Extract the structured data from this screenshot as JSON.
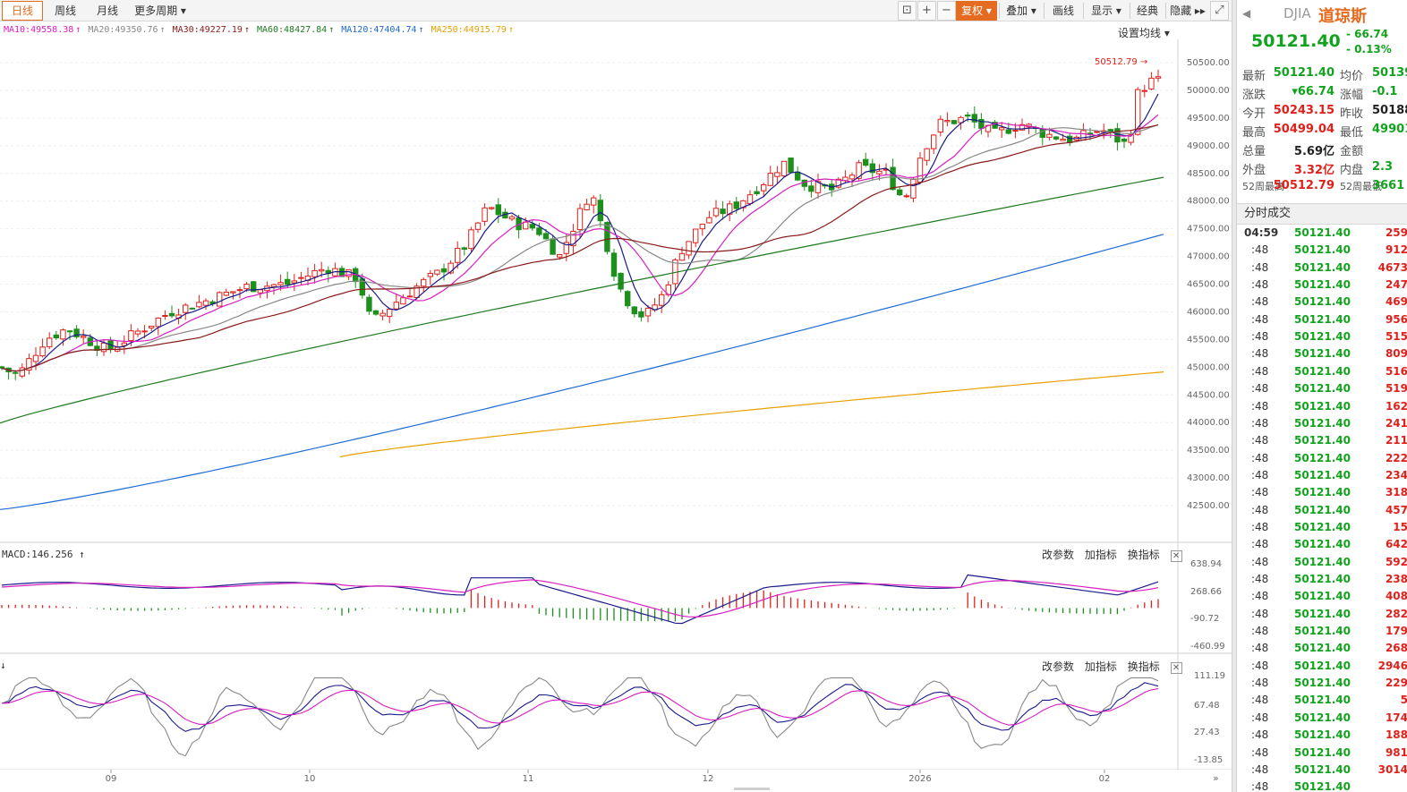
{
  "toolbar": {
    "tabs": [
      {
        "label": "日线",
        "active": true
      },
      {
        "label": "周线",
        "active": false
      },
      {
        "label": "月线",
        "active": false
      },
      {
        "label": "更多周期 ▾",
        "active": false
      }
    ],
    "right_buttons": {
      "adjust": "复权 ▾",
      "overlay": "叠加 ▾",
      "draw": "画线",
      "display": "显示 ▾",
      "classic": "经典",
      "hide": "隐藏 ▸▸"
    },
    "icons": [
      "lock-icon",
      "zoom-in-icon",
      "zoom-out-icon",
      "fullscreen-icon"
    ]
  },
  "ma_legend": [
    {
      "label": "MA10:49558.38",
      "arrow": "↑",
      "color": "#d81ec0"
    },
    {
      "label": "MA20:49350.76",
      "arrow": "↑",
      "color": "#888888"
    },
    {
      "label": "MA30:49227.19",
      "arrow": "↑",
      "color": "#8b1a1a"
    },
    {
      "label": "MA60:48427.84",
      "arrow": "↑",
      "color": "#1f7a1f"
    },
    {
      "label": "MA120:47404.74",
      "arrow": "↑",
      "color": "#1d6ad6"
    },
    {
      "label": "MA250:44915.79",
      "arrow": "↑",
      "color": "#e8a000"
    }
  ],
  "ma_setting": "设置均线 ▾",
  "main_chart": {
    "y_ticks": [
      "50500.00",
      "50000.00",
      "49500.00",
      "49000.00",
      "48500.00",
      "48000.00",
      "47500.00",
      "47000.00",
      "46500.00",
      "46000.00",
      "45500.00",
      "45000.00",
      "44500.00",
      "44000.00",
      "43500.00",
      "43000.00",
      "42500.00"
    ],
    "high_marker": "50512.79"
  },
  "macd_panel": {
    "label": "MACD:146.256",
    "arrow": "↑",
    "buttons": [
      "改参数",
      "加指标",
      "换指标"
    ],
    "y_ticks": [
      "638.94",
      "268.66",
      "-90.72",
      "-460.99"
    ]
  },
  "kdj_panel": {
    "label": "↓",
    "buttons": [
      "改参数",
      "加指标",
      "换指标"
    ],
    "y_ticks": [
      "111.19",
      "67.48",
      "27.43",
      "-13.85"
    ]
  },
  "x_axis": [
    {
      "label": "09",
      "x": 124
    },
    {
      "label": "10",
      "x": 346
    },
    {
      "label": "11",
      "x": 590
    },
    {
      "label": "12",
      "x": 791
    },
    {
      "label": "2026",
      "x": 1028
    },
    {
      "label": "02",
      "x": 1234
    }
  ],
  "quote": {
    "symbol": "DJIA",
    "name": "道琼斯",
    "price": "50121.40",
    "change": "- 66.74",
    "change_pct": "- 0.13%",
    "rows": [
      {
        "l1": "最新",
        "v1": "50121.40",
        "c1": "green",
        "l2": "均价",
        "v2": "50139",
        "c2": "green"
      },
      {
        "l1": "涨跌",
        "v1": "▾66.74",
        "c1": "green",
        "l2": "涨幅",
        "v2": "-0.1",
        "c2": "green"
      },
      {
        "l1": "今开",
        "v1": "50243.15",
        "c1": "red",
        "l2": "昨收",
        "v2": "50188",
        "c2": "black"
      },
      {
        "l1": "最高",
        "v1": "50499.04",
        "c1": "red",
        "l2": "最低",
        "v2": "49901",
        "c2": "green"
      },
      {
        "l1": "总量",
        "v1": "5.69亿",
        "c1": "black",
        "l2": "金额",
        "v2": "",
        "c2": "black"
      },
      {
        "l1": "外盘",
        "v1": "3.32亿",
        "c1": "red",
        "l2": "内盘",
        "v2": "2.3",
        "c2": "green"
      },
      {
        "l1": "52周最高",
        "v1": "50512.79",
        "c1": "red",
        "l2": "52周最低",
        "v2": "3661",
        "c2": "green"
      }
    ]
  },
  "trades_title": "分时成交",
  "trades": [
    {
      "t": "04:59",
      "p": "50121.40",
      "v": "259",
      "c": "red"
    },
    {
      "t": ":48",
      "p": "50121.40",
      "v": "912",
      "c": "red"
    },
    {
      "t": ":48",
      "p": "50121.40",
      "v": "4673",
      "c": "red"
    },
    {
      "t": ":48",
      "p": "50121.40",
      "v": "247",
      "c": "red"
    },
    {
      "t": ":48",
      "p": "50121.40",
      "v": "469",
      "c": "red"
    },
    {
      "t": ":48",
      "p": "50121.40",
      "v": "956",
      "c": "red"
    },
    {
      "t": ":48",
      "p": "50121.40",
      "v": "515",
      "c": "red"
    },
    {
      "t": ":48",
      "p": "50121.40",
      "v": "809",
      "c": "red"
    },
    {
      "t": ":48",
      "p": "50121.40",
      "v": "516",
      "c": "red"
    },
    {
      "t": ":48",
      "p": "50121.40",
      "v": "519",
      "c": "red"
    },
    {
      "t": ":48",
      "p": "50121.40",
      "v": "162",
      "c": "red"
    },
    {
      "t": ":48",
      "p": "50121.40",
      "v": "241",
      "c": "red"
    },
    {
      "t": ":48",
      "p": "50121.40",
      "v": "211",
      "c": "red"
    },
    {
      "t": ":48",
      "p": "50121.40",
      "v": "222",
      "c": "red"
    },
    {
      "t": ":48",
      "p": "50121.40",
      "v": "234",
      "c": "red"
    },
    {
      "t": ":48",
      "p": "50121.40",
      "v": "318",
      "c": "red"
    },
    {
      "t": ":48",
      "p": "50121.40",
      "v": "457",
      "c": "red"
    },
    {
      "t": ":48",
      "p": "50121.40",
      "v": "15",
      "c": "red"
    },
    {
      "t": ":48",
      "p": "50121.40",
      "v": "642",
      "c": "red"
    },
    {
      "t": ":48",
      "p": "50121.40",
      "v": "592",
      "c": "red"
    },
    {
      "t": ":48",
      "p": "50121.40",
      "v": "238",
      "c": "red"
    },
    {
      "t": ":48",
      "p": "50121.40",
      "v": "408",
      "c": "red"
    },
    {
      "t": ":48",
      "p": "50121.40",
      "v": "282",
      "c": "red"
    },
    {
      "t": ":48",
      "p": "50121.40",
      "v": "179",
      "c": "red"
    },
    {
      "t": ":48",
      "p": "50121.40",
      "v": "268",
      "c": "red"
    },
    {
      "t": ":48",
      "p": "50121.40",
      "v": "2946",
      "c": "red"
    },
    {
      "t": ":48",
      "p": "50121.40",
      "v": "229",
      "c": "red"
    },
    {
      "t": ":48",
      "p": "50121.40",
      "v": "5",
      "c": "red"
    },
    {
      "t": ":48",
      "p": "50121.40",
      "v": "174",
      "c": "red"
    },
    {
      "t": ":48",
      "p": "50121.40",
      "v": "188",
      "c": "red"
    },
    {
      "t": ":48",
      "p": "50121.40",
      "v": "981",
      "c": "red"
    },
    {
      "t": ":48",
      "p": "50121.40",
      "v": "3014",
      "c": "red"
    },
    {
      "t": ":48",
      "p": "50121.40",
      "v": "",
      "c": "red"
    }
  ]
}
